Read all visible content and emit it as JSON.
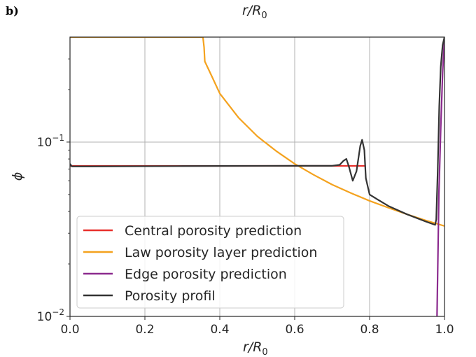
{
  "panel_label": "b)",
  "top_label": "r/R",
  "top_label_sub": "0",
  "chart_data": {
    "type": "line",
    "xlabel": "r/R",
    "xlabel_sub": "0",
    "ylabel": "ϕ",
    "xlim": [
      0.0,
      1.0
    ],
    "ylim": [
      0.01,
      0.4
    ],
    "yscale": "log",
    "grid": true,
    "legend_position": "lower-left",
    "xticks": [
      "0.0",
      "0.2",
      "0.4",
      "0.6",
      "0.8",
      "1.0"
    ],
    "yticks": [
      {
        "value": 0.1,
        "base": "10",
        "exp": "−1"
      },
      {
        "value": 0.01,
        "base": "10",
        "exp": "−2"
      }
    ],
    "series": [
      {
        "name": "Central porosity prediction",
        "color": "#e8302c",
        "x": [
          0.0,
          0.79
        ],
        "y": [
          0.073,
          0.073
        ]
      },
      {
        "name": "Law porosity layer prediction",
        "color": "#f4a21e",
        "x": [
          0.0,
          0.355,
          0.358,
          0.36,
          0.38,
          0.4,
          0.45,
          0.5,
          0.55,
          0.6,
          0.65,
          0.7,
          0.75,
          0.8,
          0.85,
          0.9,
          0.95,
          1.0
        ],
        "y": [
          0.4,
          0.4,
          0.35,
          0.29,
          0.235,
          0.19,
          0.138,
          0.108,
          0.089,
          0.075,
          0.065,
          0.057,
          0.051,
          0.046,
          0.042,
          0.0385,
          0.0355,
          0.033
        ]
      },
      {
        "name": "Edge porosity prediction",
        "color": "#8b2a8e",
        "x": [
          0.98,
          0.985,
          0.99,
          0.995,
          1.0
        ],
        "y": [
          0.01,
          0.05,
          0.12,
          0.25,
          0.4
        ]
      },
      {
        "name": "Porosity profil",
        "color": "#333333",
        "x": [
          0.0,
          0.005,
          0.05,
          0.3,
          0.6,
          0.7,
          0.72,
          0.73,
          0.738,
          0.745,
          0.755,
          0.765,
          0.775,
          0.78,
          0.786,
          0.79,
          0.8,
          0.82,
          0.85,
          0.9,
          0.95,
          0.975,
          0.978,
          0.982,
          0.986,
          0.99,
          0.995,
          1.0
        ],
        "y": [
          0.075,
          0.0725,
          0.0725,
          0.0728,
          0.0731,
          0.0731,
          0.074,
          0.078,
          0.08,
          0.072,
          0.06,
          0.068,
          0.095,
          0.103,
          0.09,
          0.062,
          0.05,
          0.047,
          0.043,
          0.0385,
          0.035,
          0.0335,
          0.036,
          0.07,
          0.16,
          0.27,
          0.36,
          0.4
        ]
      }
    ]
  }
}
